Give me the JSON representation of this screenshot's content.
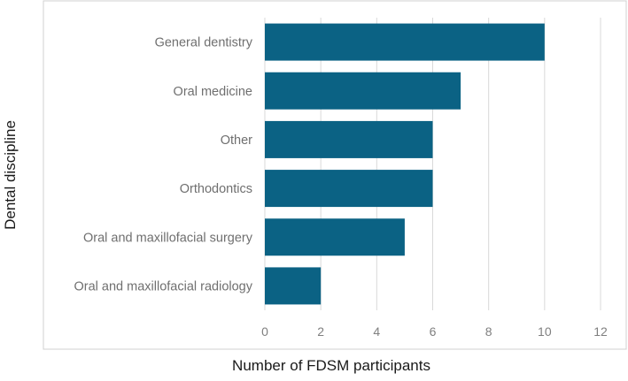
{
  "chart_data": {
    "type": "bar",
    "orientation": "horizontal",
    "categories": [
      "General dentistry",
      "Oral medicine",
      "Other",
      "Orthodontics",
      "Oral and maxillofacial surgery",
      "Oral and maxillofacial radiology"
    ],
    "values": [
      10,
      7,
      6,
      6,
      5,
      2
    ],
    "xlabel": "Number of FDSM participants",
    "ylabel": "Dental discipline",
    "xlim": [
      0,
      12
    ],
    "xticks": [
      "0",
      "2",
      "4",
      "6",
      "8",
      "10",
      "12"
    ],
    "grid": "vertical",
    "bar_color": "#0b6284",
    "grid_color": "#d9d9d9",
    "frame_color": "#d0d0d0"
  }
}
